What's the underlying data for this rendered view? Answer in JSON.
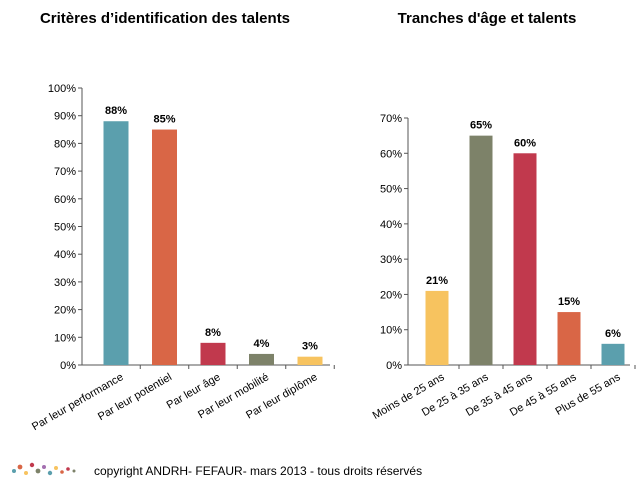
{
  "footer": {
    "copyright": "copyright  ANDRH- FEFAUR- mars 2013 - tous droits réservés"
  },
  "chart_data": [
    {
      "type": "bar",
      "title": "Critères d’identification des talents",
      "categories": [
        "Par leur performance",
        "Par leur potentiel",
        "Par leur âge",
        "Par leur mobilité",
        "Par leur diplôme"
      ],
      "values": [
        88,
        85,
        8,
        4,
        3
      ],
      "labels": [
        "88%",
        "85%",
        "8%",
        "4%",
        "3%"
      ],
      "colors": [
        "#5b9fad",
        "#d96646",
        "#c1394d",
        "#7d8269",
        "#f7c35f"
      ],
      "yticks": [
        "0%",
        "10%",
        "20%",
        "30%",
        "40%",
        "50%",
        "60%",
        "70%",
        "80%",
        "90%",
        "100%"
      ],
      "ylim": [
        0,
        100
      ],
      "xlabel": "",
      "ylabel": "",
      "grid": false,
      "legend": "none"
    },
    {
      "type": "bar",
      "title": "Tranches d'âge et talents",
      "categories": [
        "Moins de 25 ans",
        "De 25 à 35 ans",
        "De 35 à 45 ans",
        "De 45 à 55 ans",
        "Plus de 55 ans"
      ],
      "values": [
        21,
        65,
        60,
        15,
        6
      ],
      "labels": [
        "21%",
        "65%",
        "60%",
        "15%",
        "6%"
      ],
      "colors": [
        "#f7c35f",
        "#7d8269",
        "#c1394d",
        "#d96646",
        "#5b9fad"
      ],
      "yticks": [
        "0%",
        "10%",
        "20%",
        "30%",
        "40%",
        "50%",
        "60%",
        "70%"
      ],
      "ylim": [
        0,
        70
      ],
      "xlabel": "",
      "ylabel": "",
      "grid": false,
      "legend": "none"
    }
  ]
}
